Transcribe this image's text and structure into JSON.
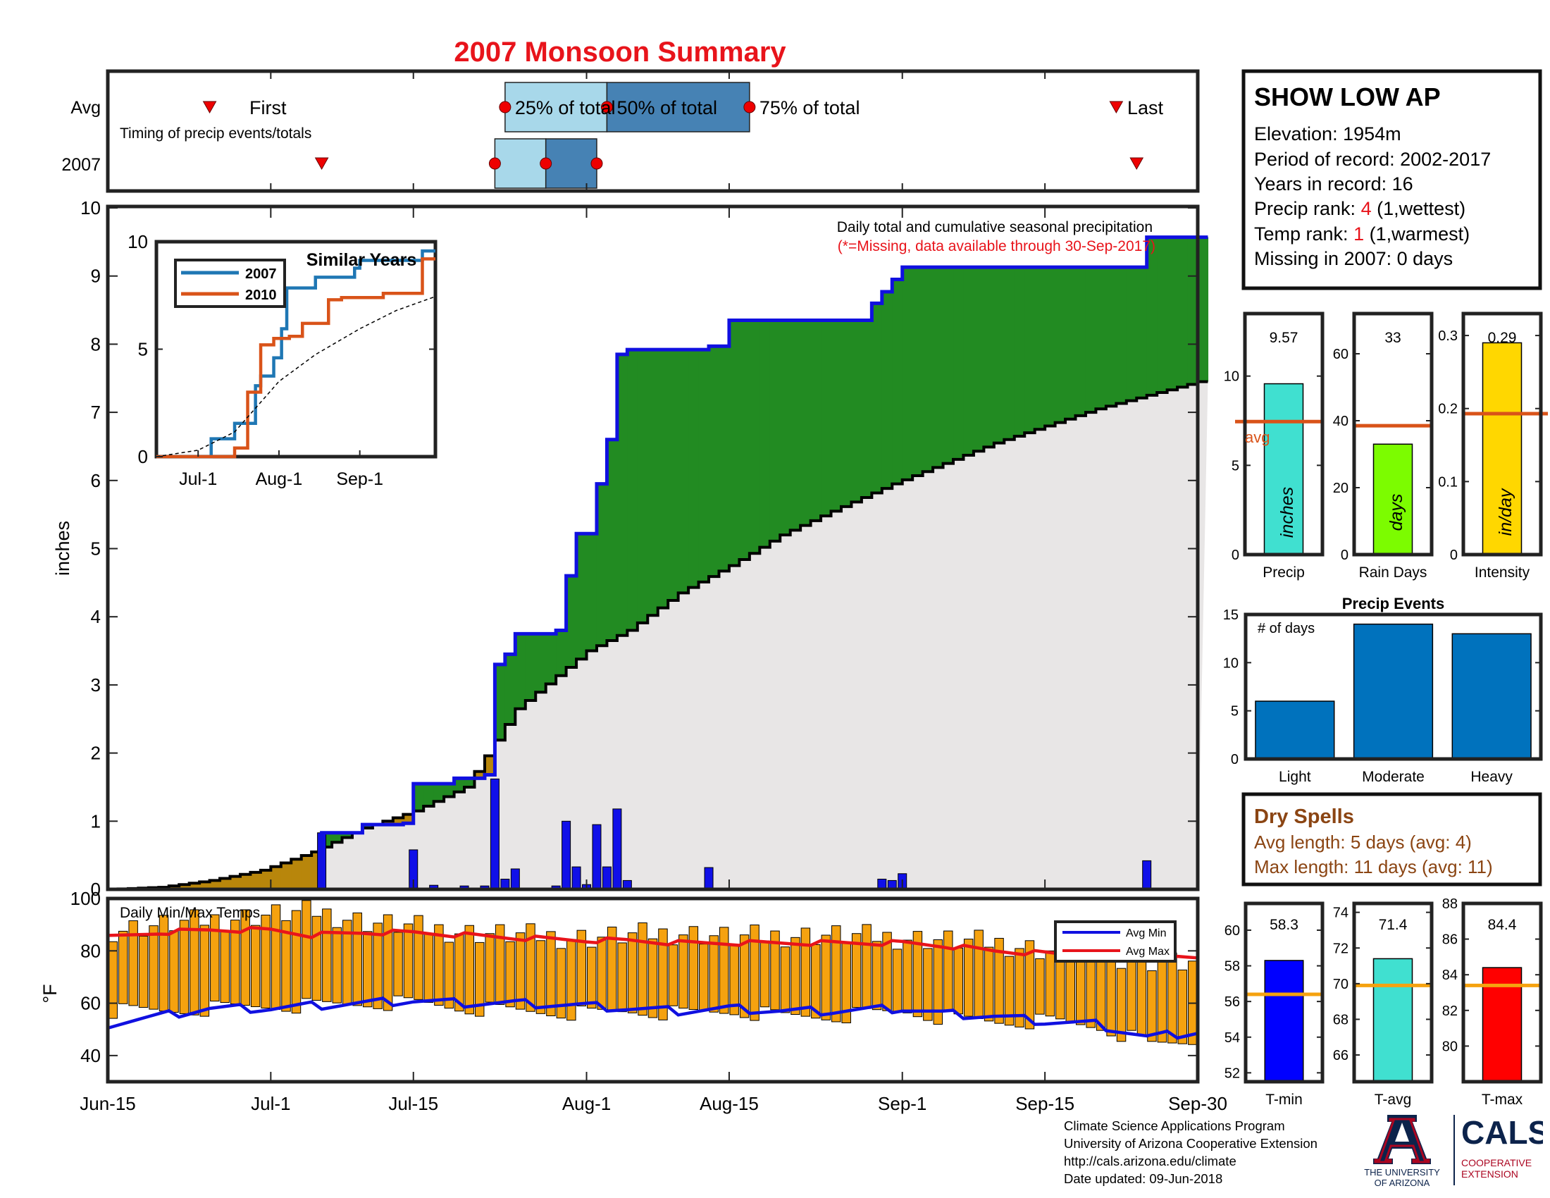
{
  "page": {
    "title": "2007 Monsoon Summary",
    "year_label": "2007",
    "avg_label": "Avg"
  },
  "timing": {
    "caption": "Timing of precip events/totals",
    "first_label": "First",
    "last_label": "Last",
    "p25_label": "25% of total",
    "p50_label": "50% of total",
    "p75_label": "75% of total",
    "avg": {
      "first": "Jun-25",
      "p25": "Jul-24",
      "p50": "Aug-3",
      "p75": "Aug-17",
      "last": "Sep-22"
    },
    "year": {
      "first": "Jul-6",
      "p25": "Jul-23",
      "p50": "Jul-28",
      "p75": "Aug-2",
      "last": "Sep-24"
    }
  },
  "station": {
    "name": "SHOW LOW AP",
    "elevation_label": "Elevation: 1954m",
    "period_label": "Period of record: 2002-2017",
    "years_label": "Years in record: 16",
    "precip_rank_prefix": "Precip rank: ",
    "precip_rank_value": "4",
    "precip_rank_suffix": " (1,wettest)",
    "temp_rank_prefix": "Temp rank: ",
    "temp_rank_value": "1",
    "temp_rank_suffix": " (1,warmest)",
    "missing_label": "Missing in 2007: 0 days"
  },
  "precip_panel": {
    "caption": "Daily total and cumulative seasonal precipitation",
    "missing_note": "(*=Missing, data available through 30-Sep-2017)",
    "ylabel": "inches"
  },
  "temp_panel": {
    "caption": "Daily Min/Max Temps",
    "ylabel": "°F",
    "legend_min": "Avg Min",
    "legend_max": "Avg Max"
  },
  "similar_years": {
    "title": "Similar Years",
    "legend": [
      "2007",
      "2010"
    ]
  },
  "dry_spells": {
    "title": "Dry Spells",
    "avg_line": "Avg length: 5 days (avg: 4)",
    "max_line": "Max length: 11 days (avg: 11)"
  },
  "footer": {
    "line1": "Climate Science Applications Program",
    "line2": "University of Arizona Cooperative Extension",
    "line3": "http://cals.arizona.edu/climate",
    "line4": " Date updated: 09-Jun-2018"
  },
  "logos": {
    "ua_line1": "THE UNIVERSITY",
    "ua_line2": "OF ARIZONA",
    "cals": "CALS",
    "cals_line1": "COOPERATIVE",
    "cals_line2": "EXTENSION"
  },
  "colors": {
    "title_red": "#e8141b",
    "cumulative_blue": "#1010e0",
    "above_avg_green": "#228b22",
    "below_avg_brown": "#b8860b",
    "avg_fill_grey": "#e8e6e6",
    "daily_bar_blue": "#1010e8",
    "temp_bar_orange": "#f5a20f",
    "line_2007": "#1f77b4",
    "line_2010": "#d95319",
    "q_light": "#a8d8ea",
    "q_dark": "#4682b4"
  },
  "chart_data": [
    {
      "id": "cumulative_precip",
      "type": "area",
      "x_axis": {
        "ticks": [
          "Jun-15",
          "Jul-1",
          "Jul-15",
          "Aug-1",
          "Aug-15",
          "Sep-1",
          "Sep-15",
          "Sep-30"
        ]
      },
      "ylim": [
        0,
        10
      ],
      "yticks": [
        0,
        1,
        2,
        3,
        4,
        5,
        6,
        7,
        8,
        9,
        10
      ],
      "ylabel": "inches",
      "total_2007": 9.57,
      "series": [
        {
          "name": "cumulative 2007",
          "x": [
            "Jun-15",
            "Jul-5",
            "Jul-6",
            "Jul-10",
            "Jul-14",
            "Jul-15",
            "Jul-19",
            "Jul-22",
            "Jul-23",
            "Jul-24",
            "Jul-25",
            "Jul-29",
            "Jul-30",
            "Jul-31",
            "Aug-2",
            "Aug-3",
            "Aug-4",
            "Aug-5",
            "Aug-13",
            "Aug-15",
            "Aug-29",
            "Aug-30",
            "Aug-31",
            "Sep-1",
            "Sep-24",
            "Sep-25",
            "Sep-30"
          ],
          "y": [
            0,
            0,
            0.83,
            0.95,
            0.97,
            1.55,
            1.63,
            1.68,
            3.3,
            3.45,
            3.75,
            3.8,
            4.6,
            5.22,
            5.95,
            6.6,
            7.85,
            7.92,
            7.97,
            8.35,
            8.6,
            8.77,
            8.95,
            9.13,
            9.13,
            9.57,
            9.57
          ]
        },
        {
          "name": "cumulative average",
          "x": [
            "Jun-15",
            "Jun-20",
            "Jun-25",
            "Jun-30",
            "Jul-5",
            "Jul-10",
            "Jul-15",
            "Jul-20",
            "Jul-25",
            "Aug-1",
            "Aug-5",
            "Aug-10",
            "Aug-15",
            "Aug-20",
            "Aug-25",
            "Aug-31",
            "Sep-5",
            "Sep-10",
            "Sep-15",
            "Sep-20",
            "Sep-25",
            "Sep-30"
          ],
          "y": [
            0,
            0.03,
            0.13,
            0.28,
            0.55,
            0.9,
            1.15,
            1.5,
            2.65,
            3.5,
            3.8,
            4.35,
            4.75,
            5.2,
            5.55,
            5.95,
            6.25,
            6.55,
            6.8,
            7.05,
            7.25,
            7.45
          ]
        }
      ]
    },
    {
      "id": "daily_precip",
      "type": "bar",
      "x": [
        "Jul-6",
        "Jul-15",
        "Jul-17",
        "Jul-20",
        "Jul-22",
        "Jul-23",
        "Jul-24",
        "Jul-25",
        "Jul-29",
        "Jul-30",
        "Jul-31",
        "Aug-1",
        "Aug-2",
        "Aug-3",
        "Aug-4",
        "Aug-5",
        "Aug-13",
        "Aug-30",
        "Aug-31",
        "Sep-1",
        "Sep-25"
      ],
      "values": [
        0.83,
        0.58,
        0.06,
        0.05,
        0.05,
        1.62,
        0.15,
        0.3,
        0.05,
        1.0,
        0.33,
        0.07,
        0.95,
        0.33,
        1.18,
        0.13,
        0.32,
        0.15,
        0.13,
        0.23,
        0.42
      ]
    },
    {
      "id": "daily_temps",
      "type": "bar",
      "ylim": [
        30,
        100
      ],
      "yticks": [
        40,
        60,
        80,
        100
      ],
      "ylabel": "°F",
      "x": [
        "Jun-15",
        "Jun-20",
        "Jun-25",
        "Jul-1",
        "Jul-5",
        "Jul-10",
        "Jul-15",
        "Jul-20",
        "Jul-25",
        "Aug-1",
        "Aug-5",
        "Aug-10",
        "Aug-15",
        "Aug-20",
        "Aug-25",
        "Sep-1",
        "Sep-5",
        "Sep-10",
        "Sep-15",
        "Sep-20",
        "Sep-25",
        "Sep-30"
      ],
      "tmax": [
        88,
        90,
        92,
        94,
        95,
        91,
        89,
        87,
        86,
        85,
        86,
        87,
        85,
        86,
        86,
        85,
        84,
        83,
        80,
        79,
        76,
        75
      ],
      "tmin": [
        57,
        57,
        58,
        59,
        59,
        60,
        60,
        58,
        57,
        56,
        57,
        56,
        57,
        55,
        55,
        57,
        54,
        53,
        53,
        51,
        44,
        46
      ],
      "series": [
        {
          "name": "Avg Min",
          "y": [
            52,
            55,
            58,
            58,
            59,
            60,
            61,
            60,
            60,
            59,
            58,
            57,
            58,
            57,
            57,
            58,
            56,
            55,
            53,
            52,
            47,
            49
          ]
        },
        {
          "name": "Avg Max",
          "y": [
            85,
            87,
            88,
            88,
            86,
            87,
            87,
            86,
            85,
            84,
            84,
            83,
            83,
            83,
            83,
            83,
            82,
            80,
            79,
            78,
            77,
            77
          ]
        }
      ]
    },
    {
      "id": "similar_years",
      "type": "line",
      "title": "Similar Years",
      "x_ticks": [
        "Jul-1",
        "Aug-1",
        "Sep-1"
      ],
      "ylim": [
        0,
        10
      ],
      "yticks": [
        0,
        5,
        10
      ],
      "series": [
        {
          "name": "2007",
          "x": [
            "Jun-15",
            "Jul-5",
            "Jul-6",
            "Jul-15",
            "Jul-23",
            "Jul-25",
            "Jul-30",
            "Aug-2",
            "Aug-4",
            "Aug-15",
            "Aug-30",
            "Sep-1",
            "Sep-25",
            "Sep-30"
          ],
          "y": [
            0,
            0,
            0.83,
            1.55,
            3.3,
            3.75,
            4.6,
            5.95,
            7.85,
            8.35,
            8.77,
            9.13,
            9.57,
            9.57
          ]
        },
        {
          "name": "2010",
          "x": [
            "Jun-15",
            "Jul-10",
            "Jul-15",
            "Jul-20",
            "Jul-25",
            "Jul-30",
            "Aug-5",
            "Aug-10",
            "Aug-20",
            "Aug-25",
            "Sep-10",
            "Sep-25",
            "Sep-30"
          ],
          "y": [
            0,
            0,
            0.4,
            3.0,
            5.2,
            5.5,
            5.6,
            6.2,
            7.3,
            7.4,
            7.6,
            9.2,
            9.2
          ]
        },
        {
          "name": "avg",
          "x": [
            "Jun-15",
            "Jul-1",
            "Jul-15",
            "Aug-1",
            "Aug-15",
            "Sep-1",
            "Sep-15",
            "Sep-30"
          ],
          "y": [
            0,
            0.3,
            1.15,
            3.5,
            4.75,
            5.95,
            6.8,
            7.45
          ]
        }
      ]
    },
    {
      "id": "season_precip",
      "type": "bar",
      "xlabel": "Precip",
      "unit_label": "inches",
      "value": 9.57,
      "value_label": "9.57",
      "avg": 7.45,
      "avg_label": "avg",
      "ylim": [
        0,
        13.5
      ],
      "yticks": [
        0,
        5,
        10
      ]
    },
    {
      "id": "rain_days",
      "type": "bar",
      "xlabel": "Rain Days",
      "unit_label": "days",
      "value": 33,
      "value_label": "33",
      "avg": 38.5,
      "ylim": [
        0,
        72
      ],
      "yticks": [
        0,
        20,
        40,
        60
      ]
    },
    {
      "id": "intensity",
      "type": "bar",
      "xlabel": "Intensity",
      "unit_label": "in/day",
      "value": 0.29,
      "value_label": "0.29",
      "avg": 0.193,
      "ylim": [
        0,
        0.33
      ],
      "yticks": [
        0,
        0.1,
        0.2,
        0.3
      ],
      "ytick_labels": [
        "0",
        "0.1",
        "0.2",
        "0.3"
      ]
    },
    {
      "id": "precip_events",
      "type": "bar",
      "title": "Precip Events",
      "annotation": "# of days",
      "categories": [
        "Light",
        "Moderate",
        "Heavy"
      ],
      "values": [
        6,
        14,
        13
      ],
      "ylim": [
        0,
        15
      ],
      "yticks": [
        0,
        5,
        10,
        15
      ]
    },
    {
      "id": "t_min",
      "type": "bar",
      "xlabel": "T-min",
      "value": 58.3,
      "value_label": "58.3",
      "avg": 56.4,
      "ylim": [
        51.5,
        61.5
      ],
      "yticks": [
        52,
        54,
        56,
        58,
        60
      ]
    },
    {
      "id": "t_avg",
      "type": "bar",
      "xlabel": "T-avg",
      "value": 71.4,
      "value_label": "71.4",
      "avg": 69.9,
      "ylim": [
        64.5,
        74.5
      ],
      "yticks": [
        66,
        68,
        70,
        72,
        74
      ]
    },
    {
      "id": "t_max",
      "type": "bar",
      "xlabel": "T-max",
      "value": 84.4,
      "value_label": "84.4",
      "avg": 83.4,
      "ylim": [
        78,
        88
      ],
      "yticks": [
        80,
        82,
        84,
        86,
        88
      ]
    }
  ]
}
